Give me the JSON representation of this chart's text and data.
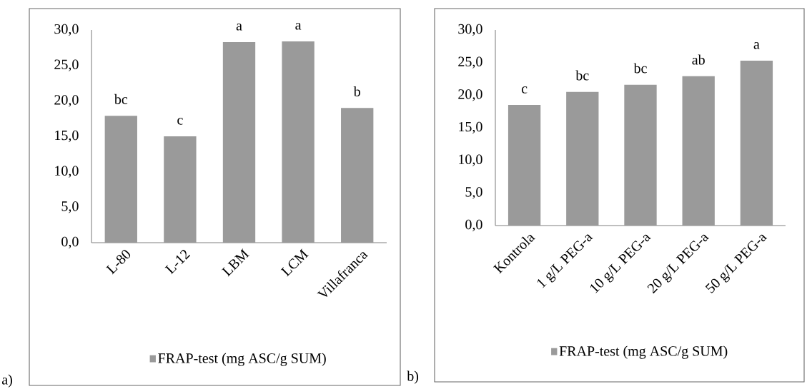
{
  "chart_data": [
    {
      "type": "bar",
      "categories": [
        "L-80",
        "L-12",
        "LBM",
        "LCM",
        "Villafranca"
      ],
      "series": [
        {
          "name": "FRAP-test (mg ASC/g SUM)",
          "color": "#9a9a9a",
          "values": [
            17.9,
            15.0,
            28.3,
            28.4,
            19.0
          ]
        }
      ],
      "ylim": [
        0,
        30
      ],
      "yticks": [
        {
          "value": 0,
          "label": "0,0"
        },
        {
          "value": 5,
          "label": "5,0"
        },
        {
          "value": 10,
          "label": "10,0"
        },
        {
          "value": 15,
          "label": "15,0"
        },
        {
          "value": 20,
          "label": "20,0"
        },
        {
          "value": 25,
          "label": "25,0"
        },
        {
          "value": 30,
          "label": "30,0"
        }
      ],
      "legend": "bottom",
      "annotations": [
        "a)",
        {
          "text": "bc",
          "x": "L-80",
          "y": 17.9
        },
        {
          "text": "c",
          "x": "L-12",
          "y": 15.0
        },
        {
          "text": "a",
          "x": "LBM",
          "y": 28.3
        },
        {
          "text": "a",
          "x": "LCM",
          "y": 28.4
        },
        {
          "text": "b",
          "x": "Villafranca",
          "y": 19.0
        }
      ]
    },
    {
      "type": "bar",
      "categories": [
        "Kontrola",
        "1 g/L PEG-a",
        "10 g/L PEG-a",
        "20 g/L PEG-a",
        "50 g/L PEG-a"
      ],
      "series": [
        {
          "name": "FRAP-test (mg ASC/g SUM)",
          "color": "#9a9a9a",
          "values": [
            18.5,
            20.5,
            21.6,
            22.9,
            25.3
          ]
        }
      ],
      "ylim": [
        0,
        30
      ],
      "yticks": [
        {
          "value": 0,
          "label": "0,0"
        },
        {
          "value": 5,
          "label": "5,0"
        },
        {
          "value": 10,
          "label": "10,0"
        },
        {
          "value": 15,
          "label": "15,0"
        },
        {
          "value": 20,
          "label": "20,0"
        },
        {
          "value": 25,
          "label": "25,0"
        },
        {
          "value": 30,
          "label": "30,0"
        }
      ],
      "legend": "bottom",
      "annotations": [
        "b)",
        {
          "text": "c",
          "x": "Kontrola",
          "y": 18.5
        },
        {
          "text": "bc",
          "x": "1 g/L PEG-a",
          "y": 20.5
        },
        {
          "text": "bc",
          "x": "10 g/L PEG-a",
          "y": 21.6
        },
        {
          "text": "ab",
          "x": "20 g/L PEG-a",
          "y": 22.9
        },
        {
          "text": "a",
          "x": "50 g/L PEG-a",
          "y": 25.3
        }
      ]
    }
  ]
}
